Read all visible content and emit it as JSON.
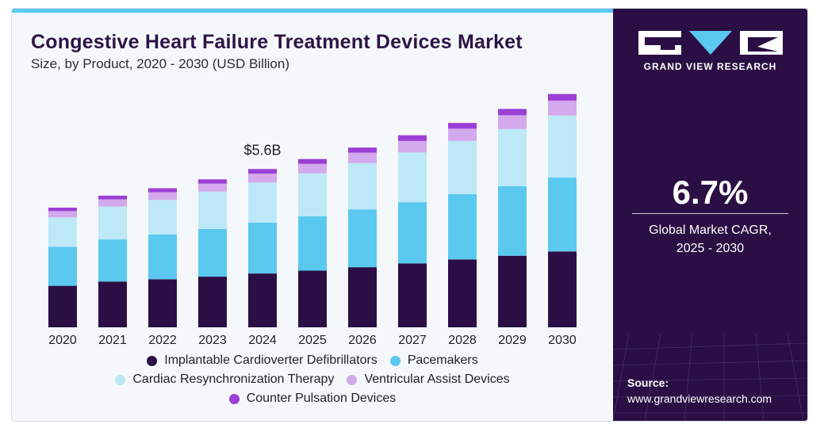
{
  "header": {
    "title": "Congestive Heart Failure Treatment Devices Market",
    "subtitle": "Size, by Product, 2020 - 2030 (USD Billion)"
  },
  "sidebar": {
    "brand": "GRAND VIEW RESEARCH",
    "cagr_value": "6.7%",
    "cagr_label_line1": "Global Market CAGR,",
    "cagr_label_line2": "2025 - 2030",
    "source_label": "Source:",
    "source_url": "www.grandviewresearch.com"
  },
  "colors": {
    "panel": "#2b0f44",
    "accent": "#5bc8f0"
  },
  "chart_data": {
    "type": "bar",
    "stacked": true,
    "categories": [
      "2020",
      "2021",
      "2022",
      "2023",
      "2024",
      "2025",
      "2026",
      "2027",
      "2028",
      "2029",
      "2030"
    ],
    "series": [
      {
        "name": "Implantable Cardioverter Defibrillators",
        "color": "#2b0f44",
        "values": [
          1.45,
          1.6,
          1.68,
          1.77,
          1.88,
          1.98,
          2.1,
          2.23,
          2.37,
          2.5,
          2.65
        ]
      },
      {
        "name": "Pacemakers",
        "color": "#5bc8f0",
        "values": [
          1.36,
          1.47,
          1.56,
          1.67,
          1.78,
          1.9,
          2.02,
          2.14,
          2.28,
          2.43,
          2.58
        ]
      },
      {
        "name": "Cardiac Resynchronization Therapy",
        "color": "#bde8f8",
        "values": [
          1.03,
          1.15,
          1.21,
          1.3,
          1.4,
          1.5,
          1.62,
          1.74,
          1.86,
          2.0,
          2.17
        ]
      },
      {
        "name": "Ventricular Assist Devices",
        "color": "#d4a8ec",
        "values": [
          0.22,
          0.25,
          0.27,
          0.28,
          0.31,
          0.33,
          0.36,
          0.4,
          0.43,
          0.48,
          0.52
        ]
      },
      {
        "name": "Counter Pulsation Devices",
        "color": "#9b3fd6",
        "values": [
          0.12,
          0.13,
          0.14,
          0.15,
          0.16,
          0.17,
          0.18,
          0.2,
          0.2,
          0.22,
          0.23
        ]
      }
    ],
    "annotations": [
      {
        "category": "2024",
        "text": "$5.6B"
      }
    ],
    "ylim": [
      0,
      8.5
    ],
    "legend_position": "bottom",
    "grid": false
  }
}
